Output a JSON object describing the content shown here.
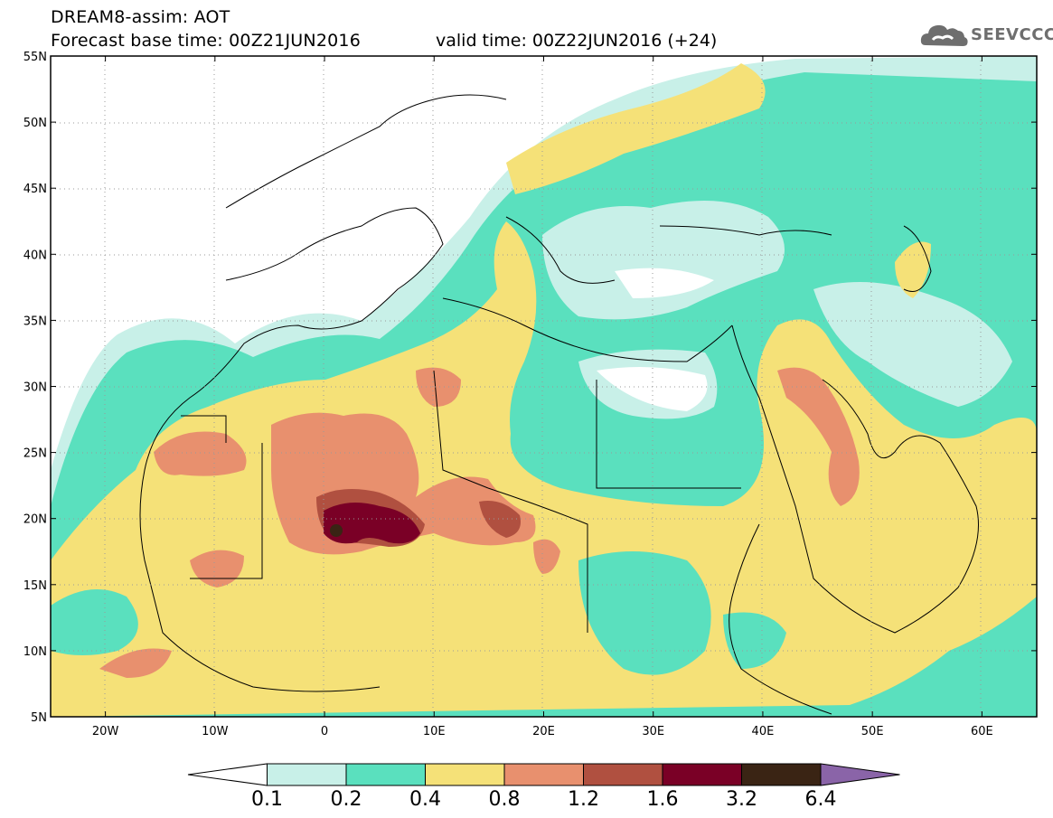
{
  "header": {
    "title_line1": "DREAM8-assim: AOT",
    "title_line2": "Forecast base time: 00Z21JUN2016",
    "valid_time": "valid time: 00Z22JUN2016 (+24)",
    "logo_text": "SEEVCCC",
    "logo_icon": "cloud-icon"
  },
  "map": {
    "lon_range": [
      -25,
      65
    ],
    "lat_range": [
      5,
      55
    ],
    "gridlines": true,
    "gridline_style": "dotted",
    "lat_labels": [
      "55N",
      "50N",
      "45N",
      "40N",
      "35N",
      "30N",
      "25N",
      "20N",
      "15N",
      "10N",
      "5N"
    ],
    "lon_labels": [
      "20W",
      "10W",
      "0",
      "10E",
      "20E",
      "30E",
      "40E",
      "50E",
      "60E"
    ],
    "background_color": "#ffffff",
    "coastline_color": "#000000"
  },
  "colorbar": {
    "levels": [
      "0.1",
      "0.2",
      "0.4",
      "0.8",
      "1.2",
      "1.6",
      "3.2",
      "6.4"
    ],
    "colors": [
      "#ffffff",
      "#c8f0e8",
      "#5ae0be",
      "#f5e178",
      "#e8906e",
      "#b05040",
      "#7a0026",
      "#3a2414",
      "#8a64a8"
    ]
  }
}
